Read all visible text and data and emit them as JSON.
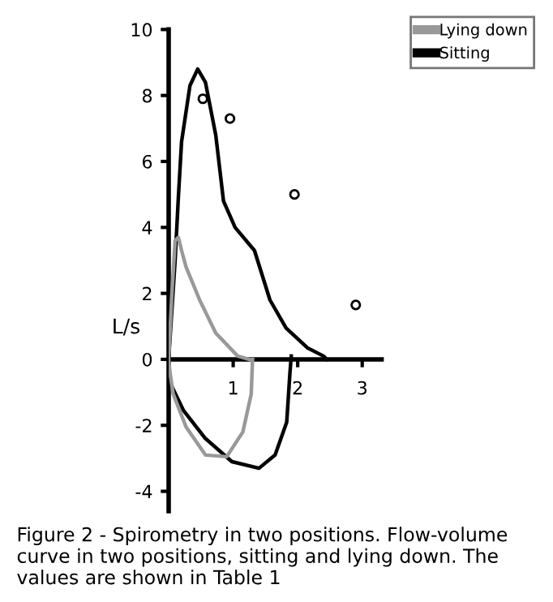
{
  "chart_data": {
    "type": "line",
    "ylabel": "L/s",
    "annotations": [
      "Figure 2 - Spirometry in two positions. Flow-volume curve in two positions, sitting and lying down. The values are shown in Table 1"
    ],
    "xlim": [
      0,
      3.3
    ],
    "ylim": [
      -4.6,
      10
    ],
    "xticks": [
      1,
      2,
      3
    ],
    "yticks": [
      -4,
      -2,
      0,
      2,
      4,
      6,
      8,
      10
    ],
    "grid": false,
    "legend": "top right",
    "series": [
      {
        "name": "Lying down",
        "color": "#999999",
        "x": [
          1.3,
          1.28,
          1.15,
          0.9,
          0.57,
          0.27,
          0.07,
          0.02,
          0,
          0.05,
          0.1,
          0.15,
          0.2,
          0.27,
          0.48,
          0.73,
          1.07,
          1.25
        ],
        "values": [
          0,
          -1.05,
          -2.2,
          -2.95,
          -2.9,
          -2.05,
          -1.05,
          -0.4,
          0,
          2.0,
          3.6,
          3.7,
          3.3,
          2.8,
          1.8,
          0.8,
          0.1,
          0
        ]
      },
      {
        "name": "Sitting",
        "color": "#000000",
        "x": [
          1.9,
          1.88,
          1.83,
          1.65,
          1.4,
          0.98,
          0.57,
          0.23,
          0.02,
          0,
          0.1,
          0.15,
          0.2,
          0.33,
          0.45,
          0.57,
          0.73,
          0.85,
          1.03,
          1.33,
          1.57,
          1.82,
          2.15,
          2.4,
          2.45
        ],
        "values": [
          0.1,
          -0.4,
          -1.9,
          -2.9,
          -3.3,
          -3.1,
          -2.4,
          -1.55,
          -0.7,
          0,
          3.0,
          4.9,
          6.6,
          8.3,
          8.8,
          8.4,
          6.8,
          4.8,
          4.0,
          3.3,
          1.8,
          0.95,
          0.35,
          0.1,
          0
        ]
      },
      {
        "type": "scatter",
        "marker": "circle",
        "color": "#000000",
        "x": [
          0.53,
          0.95,
          1.95,
          2.9
        ],
        "values": [
          7.9,
          7.3,
          5.0,
          1.65
        ]
      }
    ]
  }
}
